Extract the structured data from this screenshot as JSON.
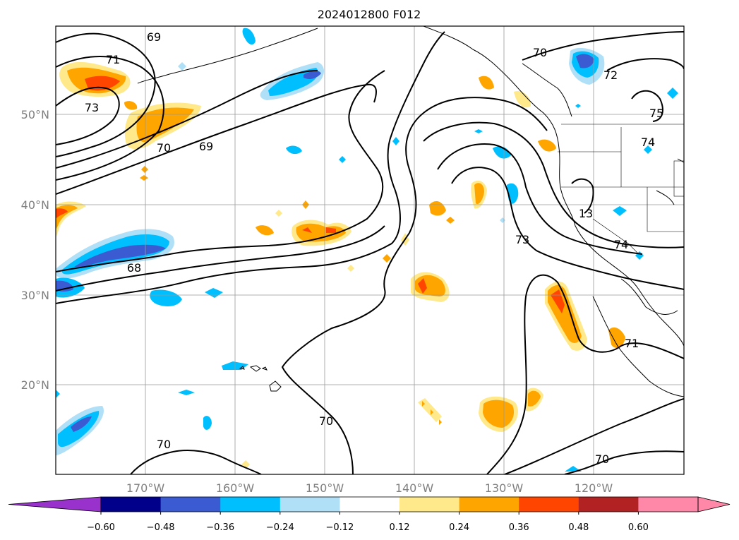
{
  "title": "2024012800 F012",
  "map": {
    "lon_labels": [
      "170°W",
      "160°W",
      "150°W",
      "140°W",
      "130°W",
      "120°W"
    ],
    "lat_labels": [
      "50°N",
      "40°N",
      "30°N",
      "20°N"
    ],
    "contour_labels": [
      "69",
      "71",
      "73",
      "70",
      "69",
      "68",
      "70",
      "70",
      "70",
      "73",
      "74",
      "13",
      "74",
      "71",
      "72",
      "75"
    ]
  },
  "colorbar": {
    "ticks": [
      "−0.60",
      "−0.48",
      "−0.36",
      "−0.24",
      "−0.12",
      "0.12",
      "0.24",
      "0.36",
      "0.48",
      "0.60"
    ],
    "colors": {
      "under": "#9932cc",
      "bins": [
        "#00008b",
        "#3a5bd2",
        "#00bfff",
        "#b0e0f8",
        "#ffffff",
        "#ffe98a",
        "#ffa500",
        "#ff4500",
        "#b22222",
        "#ff88a8"
      ]
    }
  },
  "colors": {
    "blue_dark": "#3a5bd2",
    "blue": "#00bfff",
    "blue_light": "#b0e0f8",
    "yellow": "#ffe98a",
    "orange": "#ffa500",
    "red": "#ff4500"
  }
}
